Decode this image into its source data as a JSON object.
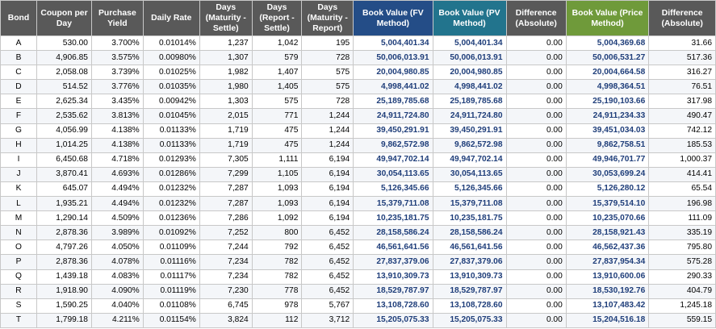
{
  "headers": [
    {
      "label": "Bond",
      "style": ""
    },
    {
      "label": "Coupon per Day",
      "style": ""
    },
    {
      "label": "Purchase Yield",
      "style": ""
    },
    {
      "label": "Daily Rate",
      "style": ""
    },
    {
      "label": "Days (Maturity - Settle)",
      "style": ""
    },
    {
      "label": "Days (Report - Settle)",
      "style": ""
    },
    {
      "label": "Days (Maturity - Report)",
      "style": ""
    },
    {
      "label": "Book Value (FV Method)",
      "style": "fv"
    },
    {
      "label": "Book Value (PV Method)",
      "style": "pv"
    },
    {
      "label": "Difference (Absolute)",
      "style": ""
    },
    {
      "label": "Book Value (Price Method)",
      "style": "pr"
    },
    {
      "label": "Difference (Absolute)",
      "style": ""
    }
  ],
  "rows": [
    [
      "A",
      "530.00",
      "3.700%",
      "0.01014%",
      "1,237",
      "1,042",
      "195",
      "5,004,401.34",
      "5,004,401.34",
      "0.00",
      "5,004,369.68",
      "31.66"
    ],
    [
      "B",
      "4,906.85",
      "3.575%",
      "0.00980%",
      "1,307",
      "579",
      "728",
      "50,006,013.91",
      "50,006,013.91",
      "0.00",
      "50,006,531.27",
      "517.36"
    ],
    [
      "C",
      "2,058.08",
      "3.739%",
      "0.01025%",
      "1,982",
      "1,407",
      "575",
      "20,004,980.85",
      "20,004,980.85",
      "0.00",
      "20,004,664.58",
      "316.27"
    ],
    [
      "D",
      "514.52",
      "3.776%",
      "0.01035%",
      "1,980",
      "1,405",
      "575",
      "4,998,441.02",
      "4,998,441.02",
      "0.00",
      "4,998,364.51",
      "76.51"
    ],
    [
      "E",
      "2,625.34",
      "3.435%",
      "0.00942%",
      "1,303",
      "575",
      "728",
      "25,189,785.68",
      "25,189,785.68",
      "0.00",
      "25,190,103.66",
      "317.98"
    ],
    [
      "F",
      "2,535.62",
      "3.813%",
      "0.01045%",
      "2,015",
      "771",
      "1,244",
      "24,911,724.80",
      "24,911,724.80",
      "0.00",
      "24,911,234.33",
      "490.47"
    ],
    [
      "G",
      "4,056.99",
      "4.138%",
      "0.01133%",
      "1,719",
      "475",
      "1,244",
      "39,450,291.91",
      "39,450,291.91",
      "0.00",
      "39,451,034.03",
      "742.12"
    ],
    [
      "H",
      "1,014.25",
      "4.138%",
      "0.01133%",
      "1,719",
      "475",
      "1,244",
      "9,862,572.98",
      "9,862,572.98",
      "0.00",
      "9,862,758.51",
      "185.53"
    ],
    [
      "I",
      "6,450.68",
      "4.718%",
      "0.01293%",
      "7,305",
      "1,111",
      "6,194",
      "49,947,702.14",
      "49,947,702.14",
      "0.00",
      "49,946,701.77",
      "1,000.37"
    ],
    [
      "J",
      "3,870.41",
      "4.693%",
      "0.01286%",
      "7,299",
      "1,105",
      "6,194",
      "30,054,113.65",
      "30,054,113.65",
      "0.00",
      "30,053,699.24",
      "414.41"
    ],
    [
      "K",
      "645.07",
      "4.494%",
      "0.01232%",
      "7,287",
      "1,093",
      "6,194",
      "5,126,345.66",
      "5,126,345.66",
      "0.00",
      "5,126,280.12",
      "65.54"
    ],
    [
      "L",
      "1,935.21",
      "4.494%",
      "0.01232%",
      "7,287",
      "1,093",
      "6,194",
      "15,379,711.08",
      "15,379,711.08",
      "0.00",
      "15,379,514.10",
      "196.98"
    ],
    [
      "M",
      "1,290.14",
      "4.509%",
      "0.01236%",
      "7,286",
      "1,092",
      "6,194",
      "10,235,181.75",
      "10,235,181.75",
      "0.00",
      "10,235,070.66",
      "111.09"
    ],
    [
      "N",
      "2,878.36",
      "3.989%",
      "0.01092%",
      "7,252",
      "800",
      "6,452",
      "28,158,586.24",
      "28,158,586.24",
      "0.00",
      "28,158,921.43",
      "335.19"
    ],
    [
      "O",
      "4,797.26",
      "4.050%",
      "0.01109%",
      "7,244",
      "792",
      "6,452",
      "46,561,641.56",
      "46,561,641.56",
      "0.00",
      "46,562,437.36",
      "795.80"
    ],
    [
      "P",
      "2,878.36",
      "4.078%",
      "0.01116%",
      "7,234",
      "782",
      "6,452",
      "27,837,379.06",
      "27,837,379.06",
      "0.00",
      "27,837,954.34",
      "575.28"
    ],
    [
      "Q",
      "1,439.18",
      "4.083%",
      "0.01117%",
      "7,234",
      "782",
      "6,452",
      "13,910,309.73",
      "13,910,309.73",
      "0.00",
      "13,910,600.06",
      "290.33"
    ],
    [
      "R",
      "1,918.90",
      "4.090%",
      "0.01119%",
      "7,230",
      "778",
      "6,452",
      "18,529,787.97",
      "18,529,787.97",
      "0.00",
      "18,530,192.76",
      "404.79"
    ],
    [
      "S",
      "1,590.25",
      "4.040%",
      "0.01108%",
      "6,745",
      "978",
      "5,767",
      "13,108,728.60",
      "13,108,728.60",
      "0.00",
      "13,107,483.42",
      "1,245.18"
    ],
    [
      "T",
      "1,799.18",
      "4.211%",
      "0.01154%",
      "3,824",
      "112",
      "3,712",
      "15,205,075.33",
      "15,205,075.33",
      "0.00",
      "15,204,516.18",
      "559.15"
    ]
  ]
}
